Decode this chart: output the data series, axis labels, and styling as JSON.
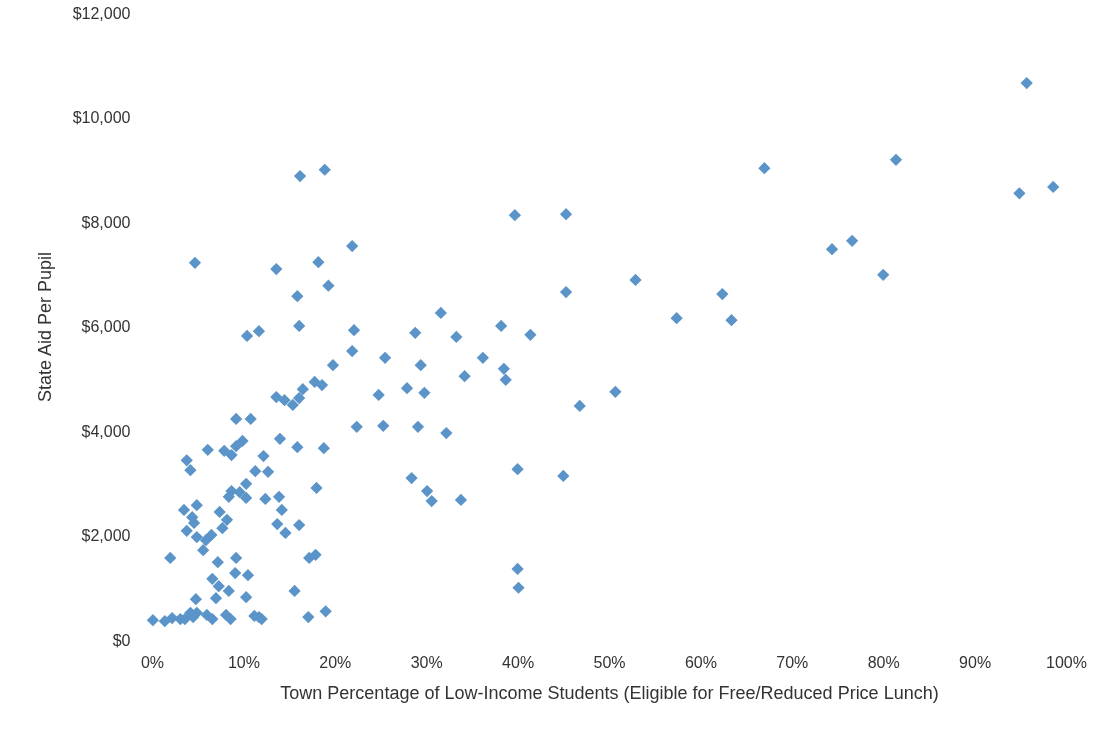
{
  "chart_data": {
    "type": "scatter",
    "xlabel": "Town Percentage of Low-Income Students (Eligible for Free/Reduced Price Lunch)",
    "ylabel": "State Aid Per Pupil",
    "xlim": [
      0,
      100
    ],
    "ylim": [
      0,
      12000
    ],
    "xticks": [
      {
        "value": 0,
        "label": "0%"
      },
      {
        "value": 10,
        "label": "10%"
      },
      {
        "value": 20,
        "label": "20%"
      },
      {
        "value": 30,
        "label": "30%"
      },
      {
        "value": 40,
        "label": "40%"
      },
      {
        "value": 50,
        "label": "50%"
      },
      {
        "value": 60,
        "label": "60%"
      },
      {
        "value": 70,
        "label": "70%"
      },
      {
        "value": 80,
        "label": "80%"
      },
      {
        "value": 90,
        "label": "90%"
      },
      {
        "value": 100,
        "label": "100%"
      }
    ],
    "yticks": [
      {
        "value": 0,
        "label": "$0"
      },
      {
        "value": 2000,
        "label": "$2,000"
      },
      {
        "value": 4000,
        "label": "$4,000"
      },
      {
        "value": 6000,
        "label": "$6,000"
      },
      {
        "value": 8000,
        "label": "$8,000"
      },
      {
        "value": 10000,
        "label": "$10,000"
      },
      {
        "value": 12000,
        "label": "$12,000"
      }
    ],
    "grid": false,
    "marker": "diamond",
    "series": [
      {
        "color": "#5b94c8",
        "x": [
          95.7,
          94.9,
          98.6,
          81.4,
          67,
          74.4,
          76.6,
          80,
          62.4,
          57.4,
          63.4,
          52.9,
          45.3,
          39.7,
          45.3,
          50.7,
          46.8,
          45,
          40,
          40,
          40.1,
          41.4,
          38.2,
          38.5,
          38.7,
          36.2,
          34.2,
          33.3,
          31.6,
          28.8,
          29.4,
          29.8,
          27.9,
          29.1,
          32.2,
          28.4,
          30.1,
          30.6,
          33.8,
          25.5,
          25.3,
          24.8,
          21.9,
          22.1,
          21.9,
          22.4,
          19.8,
          19.3,
          18.9,
          16.2,
          18.2,
          15.9,
          16.1,
          13.6,
          4.7,
          11.7,
          10.4,
          18.6,
          17.8,
          16.5,
          16.1,
          15.4,
          14.5,
          13.6,
          14,
          18.8,
          15.9,
          6.1,
          3.8,
          4.2,
          9.2,
          10.8,
          9.9,
          9.2,
          7.9,
          8.7,
          12.2,
          12.7,
          11.3,
          10.3,
          9.6,
          8.7,
          8.4,
          10.3,
          12.4,
          13.9,
          14.2,
          18,
          16.1,
          13.7,
          14.6,
          7.4,
          8.2,
          7.7,
          4.9,
          3.5,
          4.4,
          4.6,
          3.8,
          4.9,
          6.5,
          5.9,
          5.6,
          2,
          9.2,
          7.2,
          9.1,
          10.5,
          6.6,
          17.2,
          17.9,
          15.6,
          7.3,
          7,
          8.4,
          10.3,
          4.8,
          17.1,
          19,
          0.1,
          1.4,
          2.2,
          3.1,
          3.6,
          4.2,
          4.9,
          4.5,
          6,
          6.6,
          8.1,
          8.6,
          11.2,
          11.7,
          12
        ],
        "values": [
          10660,
          8550,
          8670,
          9190,
          9030,
          7480,
          7640,
          6990,
          6620,
          6160,
          6120,
          6890,
          8150,
          8130,
          6660,
          4750,
          4480,
          3140,
          3270,
          1360,
          1000,
          5840,
          6010,
          5190,
          4980,
          5400,
          5050,
          5800,
          6260,
          5880,
          5260,
          4730,
          4820,
          4080,
          3960,
          3100,
          2850,
          2660,
          2680,
          5400,
          4100,
          4690,
          7540,
          5930,
          5530,
          4080,
          5260,
          6780,
          9000,
          8880,
          7230,
          6580,
          6010,
          7100,
          7220,
          5910,
          5820,
          4880,
          4940,
          4800,
          4630,
          4500,
          4590,
          4650,
          3850,
          3670,
          3690,
          3640,
          3440,
          3250,
          4230,
          4230,
          3810,
          3710,
          3620,
          3540,
          3520,
          3220,
          3230,
          2990,
          2830,
          2850,
          2740,
          2720,
          2700,
          2740,
          2490,
          2910,
          2200,
          2220,
          2050,
          2450,
          2300,
          2140,
          2580,
          2490,
          2350,
          2240,
          2090,
          1970,
          2010,
          1910,
          1720,
          1570,
          1570,
          1490,
          1280,
          1240,
          1170,
          1570,
          1630,
          940,
          1030,
          800,
          940,
          820,
          780,
          440,
          550,
          380,
          360,
          420,
          400,
          400,
          520,
          520,
          440,
          480,
          400,
          480,
          400,
          460,
          440,
          400
        ]
      }
    ]
  }
}
